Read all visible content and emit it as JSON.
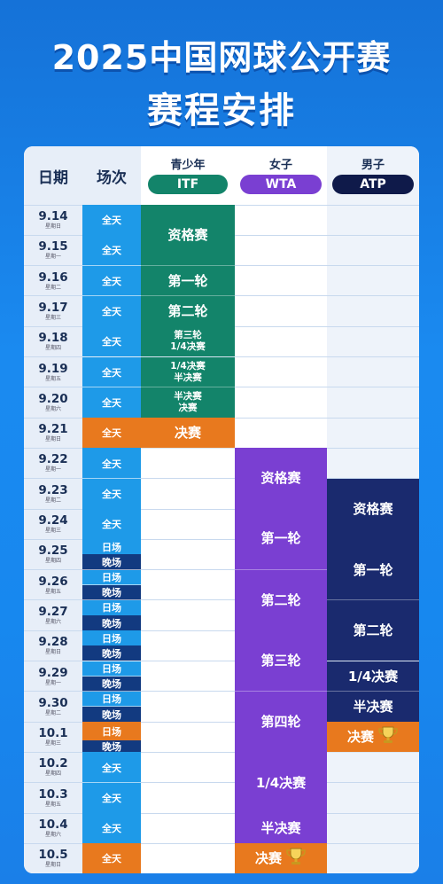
{
  "header": {
    "title_line1": "2025中国网球公开赛",
    "title_line2": "赛程安排"
  },
  "columns": {
    "date": "日期",
    "session": "场次",
    "youth": {
      "label": "青少年",
      "pill": "ITF"
    },
    "women": {
      "label": "女子",
      "pill": "WTA"
    },
    "men": {
      "label": "男子",
      "pill": "ATP"
    }
  },
  "colors": {
    "itf": "#13846a",
    "wta": "#7a3fd2",
    "atp": "#1a2a6e",
    "final": "#e8791e",
    "session_day": "#1e9ae8",
    "session_night": "#123a80"
  },
  "rows": [
    {
      "date": "9.14",
      "weekday": "星期日",
      "sessions": [
        "全天"
      ]
    },
    {
      "date": "9.15",
      "weekday": "星期一",
      "sessions": [
        "全天"
      ]
    },
    {
      "date": "9.16",
      "weekday": "星期二",
      "sessions": [
        "全天"
      ]
    },
    {
      "date": "9.17",
      "weekday": "星期三",
      "sessions": [
        "全天"
      ]
    },
    {
      "date": "9.18",
      "weekday": "星期四",
      "sessions": [
        "全天"
      ]
    },
    {
      "date": "9.19",
      "weekday": "星期五",
      "sessions": [
        "全天"
      ]
    },
    {
      "date": "9.20",
      "weekday": "星期六",
      "sessions": [
        "全天"
      ]
    },
    {
      "date": "9.21",
      "weekday": "星期日",
      "sessions": [
        "全天"
      ]
    },
    {
      "date": "9.22",
      "weekday": "星期一",
      "sessions": [
        "全天"
      ]
    },
    {
      "date": "9.23",
      "weekday": "星期二",
      "sessions": [
        "全天"
      ]
    },
    {
      "date": "9.24",
      "weekday": "星期三",
      "sessions": [
        "全天"
      ]
    },
    {
      "date": "9.25",
      "weekday": "星期四",
      "sessions": [
        "日场",
        "晚场"
      ]
    },
    {
      "date": "9.26",
      "weekday": "星期五",
      "sessions": [
        "日场",
        "晚场"
      ]
    },
    {
      "date": "9.27",
      "weekday": "星期六",
      "sessions": [
        "日场",
        "晚场"
      ]
    },
    {
      "date": "9.28",
      "weekday": "星期日",
      "sessions": [
        "日场",
        "晚场"
      ]
    },
    {
      "date": "9.29",
      "weekday": "星期一",
      "sessions": [
        "日场",
        "晚场"
      ]
    },
    {
      "date": "9.30",
      "weekday": "星期二",
      "sessions": [
        "日场",
        "晚场"
      ]
    },
    {
      "date": "10.1",
      "weekday": "星期三",
      "sessions": [
        "日场",
        "晚场"
      ]
    },
    {
      "date": "10.2",
      "weekday": "星期四",
      "sessions": [
        "全天"
      ]
    },
    {
      "date": "10.3",
      "weekday": "星期五",
      "sessions": [
        "全天"
      ]
    },
    {
      "date": "10.4",
      "weekday": "星期六",
      "sessions": [
        "全天"
      ]
    },
    {
      "date": "10.5",
      "weekday": "星期日",
      "sessions": [
        "全天"
      ]
    }
  ],
  "itf_blocks": [
    {
      "lines": [
        "资格赛"
      ]
    },
    {
      "lines": [
        "第一轮"
      ]
    },
    {
      "lines": [
        "第二轮"
      ]
    },
    {
      "lines": [
        "第三轮",
        "1/4决赛"
      ]
    },
    {
      "lines": [
        "1/4决赛",
        "半决赛"
      ]
    },
    {
      "lines": [
        "半决赛",
        "决赛"
      ]
    },
    {
      "lines": [
        "决赛"
      ]
    }
  ],
  "wta_blocks": [
    {
      "lines": [
        "资格赛"
      ]
    },
    {
      "lines": [
        "第一轮"
      ]
    },
    {
      "lines": [
        "第二轮"
      ]
    },
    {
      "lines": [
        "第三轮"
      ]
    },
    {
      "lines": [
        "第四轮"
      ]
    },
    {
      "lines": [
        "1/4决赛"
      ]
    },
    {
      "lines": [
        "半决赛"
      ]
    },
    {
      "lines": [
        "决赛"
      ],
      "trophy": "trophy-icon"
    }
  ],
  "atp_blocks": [
    {
      "lines": [
        "资格赛"
      ]
    },
    {
      "lines": [
        "第一轮"
      ]
    },
    {
      "lines": [
        "第二轮"
      ]
    },
    {
      "lines": [
        "1/4决赛"
      ]
    },
    {
      "lines": [
        "半决赛"
      ]
    },
    {
      "lines": [
        "决赛"
      ],
      "trophy": "trophy-icon"
    }
  ]
}
